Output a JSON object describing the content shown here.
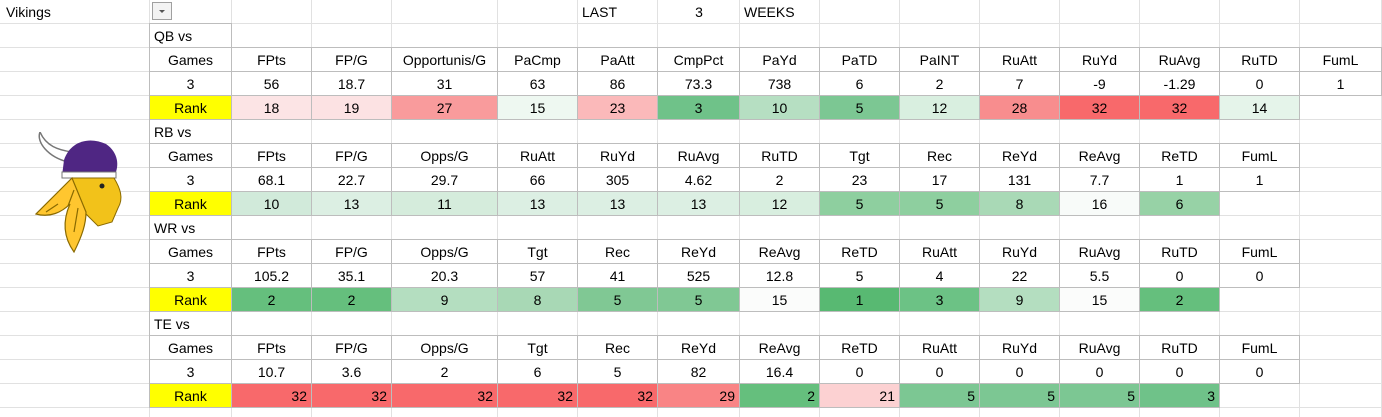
{
  "sheet": {
    "team": "Vikings",
    "period_label": "LAST",
    "period_count": 3,
    "period_unit": "WEEKS",
    "sections": [
      {
        "label": "QB vs",
        "headers": [
          "Games",
          "FPts",
          "FP/G",
          "Opportunis/G",
          "PaCmp",
          "PaAtt",
          "CmpPct",
          "PaYd",
          "PaTD",
          "PaINT",
          "RuAtt",
          "RuYd",
          "RuAvg",
          "RuTD",
          "FumL"
        ],
        "values": [
          3,
          56,
          18.7,
          31,
          63,
          86,
          73.3,
          738,
          6,
          2,
          7,
          -9,
          -1.29,
          0,
          1
        ],
        "rank_label": "Rank",
        "ranks": [
          18,
          19,
          27,
          15,
          23,
          3,
          10,
          5,
          12,
          28,
          32,
          32,
          14
        ],
        "rank_colors": [
          "#fce4e5",
          "#fce2e3",
          "#f99b9c",
          "#eef8f1",
          "#fbb9ba",
          "#6fc289",
          "#b6dfc2",
          "#7cc793",
          "#d9efe0",
          "#f88d8e",
          "#f8696b",
          "#f8696b",
          "#e5f4ea"
        ],
        "rank_align": "center"
      },
      {
        "label": "RB vs",
        "headers": [
          "Games",
          "FPts",
          "FP/G",
          "Opps/G",
          "RuAtt",
          "RuYd",
          "RuAvg",
          "RuTD",
          "Tgt",
          "Rec",
          "ReYd",
          "ReAvg",
          "ReTD",
          "FumL"
        ],
        "values": [
          3,
          68.1,
          22.7,
          29.7,
          66,
          305,
          4.62,
          2,
          23,
          17,
          131,
          7.7,
          1,
          1
        ],
        "rank_label": "Rank",
        "ranks": [
          10,
          13,
          11,
          13,
          13,
          13,
          12,
          5,
          5,
          8,
          16,
          6
        ],
        "rank_colors": [
          "#d1eada",
          "#dcefe3",
          "#d5ecdc",
          "#dcefe3",
          "#dcefe3",
          "#dcefe3",
          "#d8eedf",
          "#8ecf9f",
          "#8ecf9f",
          "#a9d9b6",
          "#f8fbf9",
          "#97d2a6"
        ],
        "rank_align": "center"
      },
      {
        "label": "WR vs",
        "headers": [
          "Games",
          "FPts",
          "FP/G",
          "Opps/G",
          "Tgt",
          "Rec",
          "ReYd",
          "ReAvg",
          "ReTD",
          "RuAtt",
          "RuYd",
          "RuAvg",
          "RuTD",
          "FumL"
        ],
        "values": [
          3,
          105.2,
          35.1,
          20.3,
          57,
          41,
          525,
          12.8,
          5,
          4,
          22,
          5.5,
          0,
          0
        ],
        "rank_label": "Rank",
        "ranks": [
          2,
          2,
          9,
          8,
          5,
          5,
          15,
          1,
          3,
          9,
          15,
          2
        ],
        "rank_colors": [
          "#65bf7d",
          "#65bf7d",
          "#b4dec0",
          "#a8d8b5",
          "#80c894",
          "#80c894",
          "#fbfcfb",
          "#58b972",
          "#6cc285",
          "#b4dec0",
          "#fbfcfb",
          "#65bf7d"
        ],
        "rank_align": "center"
      },
      {
        "label": "TE vs",
        "headers": [
          "Games",
          "FPts",
          "FP/G",
          "Opps/G",
          "Tgt",
          "Rec",
          "ReYd",
          "ReAvg",
          "ReTD",
          "RuAtt",
          "RuYd",
          "RuAvg",
          "RuTD",
          "FumL"
        ],
        "values": [
          3,
          10.7,
          3.6,
          2,
          6,
          5,
          82,
          16.4,
          0,
          0,
          0,
          0,
          0,
          0
        ],
        "rank_label": "Rank",
        "ranks": [
          32,
          32,
          32,
          32,
          32,
          29,
          2,
          21,
          5,
          5,
          5,
          3
        ],
        "rank_colors": [
          "#f8696b",
          "#f8696b",
          "#f8696b",
          "#f8696b",
          "#f8696b",
          "#f98485",
          "#65bf7d",
          "#fcd1d2",
          "#7cc793",
          "#7cc793",
          "#7cc793",
          "#6fc289"
        ],
        "rank_align": "right"
      }
    ]
  }
}
